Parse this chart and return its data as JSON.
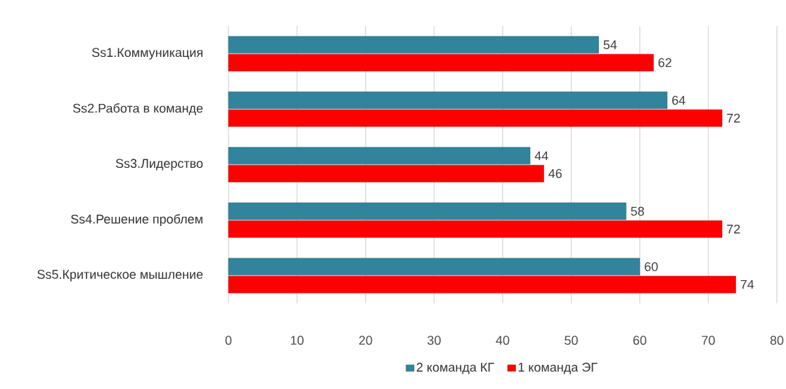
{
  "chart_data": {
    "type": "bar",
    "orientation": "horizontal",
    "categories": [
      "Ss1.Коммуникация",
      "Ss2.Работа в команде",
      "Ss3.Лидерство",
      "Ss4.Решение проблем",
      "Ss5.Критическое мышление"
    ],
    "series": [
      {
        "name": "2 команда КГ",
        "color": "#31849b",
        "values": [
          54,
          64,
          44,
          58,
          60
        ]
      },
      {
        "name": "1 команда ЭГ",
        "color": "#ff0000",
        "values": [
          62,
          72,
          46,
          72,
          74
        ]
      }
    ],
    "xlim": [
      0,
      80
    ],
    "xticks": [
      0,
      10,
      20,
      30,
      40,
      50,
      60,
      70,
      80
    ],
    "grid": "x",
    "legend": "bottom",
    "data_labels": true
  }
}
